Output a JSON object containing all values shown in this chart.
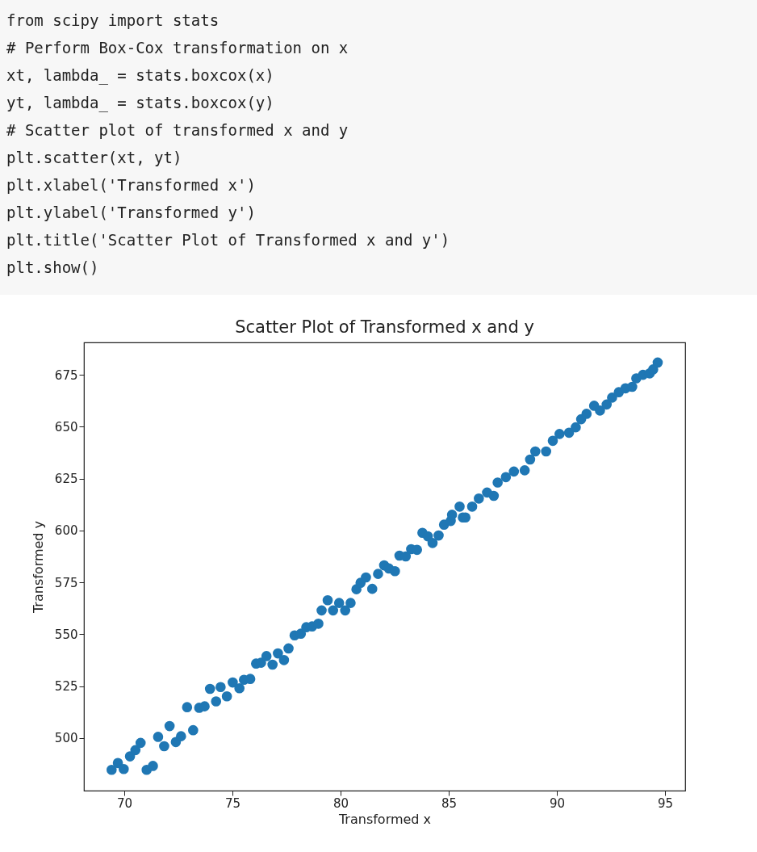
{
  "chart_data": {
    "type": "scatter",
    "title": "Scatter Plot of Transformed x and y",
    "xlabel": "Transformed x",
    "ylabel": "Transformed y",
    "annotations": [
      "from scipy import stats",
      "# Perform Box-Cox transformation on x",
      "xt, lambda_ = stats.boxcox(x)",
      "yt, lambda_ = stats.boxcox(y)",
      "# Scatter plot of transformed x and y",
      "plt.scatter(xt, yt)",
      "plt.xlabel('Transformed x')",
      "plt.ylabel('Transformed y')",
      "plt.title('Scatter Plot of Transformed x and y')",
      "plt.show()"
    ],
    "series": [
      {
        "color": "#1f77b4",
        "x": [
          69.41,
          69.7,
          69.97,
          70.26,
          70.51,
          70.75,
          71.03,
          71.32,
          71.56,
          71.84,
          72.09,
          72.38,
          72.62,
          72.9,
          73.18,
          73.46,
          73.71,
          73.96,
          74.24,
          74.45,
          74.74,
          75.01,
          75.32,
          75.53,
          75.82,
          76.09,
          76.32,
          76.57,
          76.85,
          77.1,
          77.38,
          77.59,
          77.87,
          78.16,
          78.41,
          78.68,
          78.97,
          79.12,
          79.4,
          79.65,
          79.93,
          80.21,
          80.46,
          80.73,
          80.92,
          81.17,
          81.46,
          81.73,
          82.01,
          82.23,
          82.51,
          82.72,
          83.01,
          83.26,
          83.53,
          83.78,
          84.03,
          84.25,
          84.53,
          84.78,
          85.09,
          85.15,
          85.5,
          85.65,
          85.77,
          86.08,
          86.39,
          86.77,
          87.08,
          87.26,
          87.64,
          88.01,
          88.51,
          88.76,
          89.0,
          89.5,
          89.81,
          90.12,
          90.56,
          90.87,
          91.12,
          91.37,
          91.72,
          91.99,
          92.3,
          92.55,
          92.86,
          93.17,
          93.48,
          93.67,
          93.98,
          94.29,
          94.45,
          94.66
        ],
        "values": [
          484.7,
          488.0,
          485.1,
          491.2,
          494.2,
          497.7,
          484.7,
          486.6,
          500.6,
          496.1,
          505.8,
          498.1,
          500.9,
          514.9,
          503.8,
          514.6,
          515.3,
          523.7,
          517.7,
          524.6,
          520.1,
          526.8,
          524.0,
          528.1,
          528.5,
          535.9,
          536.3,
          539.5,
          535.4,
          540.8,
          537.6,
          543.2,
          549.5,
          550.3,
          553.4,
          553.8,
          555.1,
          561.5,
          566.4,
          561.5,
          565.1,
          561.5,
          565.1,
          571.7,
          574.8,
          577.4,
          571.9,
          579.1,
          583.2,
          581.7,
          580.4,
          587.9,
          587.5,
          591.0,
          590.7,
          598.9,
          597.2,
          594.0,
          597.6,
          602.8,
          604.6,
          607.6,
          611.5,
          606.3,
          606.3,
          611.5,
          615.4,
          618.3,
          616.7,
          623.1,
          625.7,
          628.4,
          629.0,
          634.2,
          638.1,
          638.1,
          643.2,
          646.5,
          647.1,
          649.7,
          653.6,
          656.2,
          660.1,
          657.8,
          660.7,
          664.0,
          666.6,
          668.5,
          669.2,
          673.3,
          675.0,
          675.7,
          677.6,
          680.9
        ]
      }
    ],
    "xlim": [
      68.13,
      95.93
    ],
    "ylim": [
      474.7,
      690.6
    ],
    "xticks": [
      70,
      75,
      80,
      85,
      90,
      95
    ],
    "yticks": [
      500,
      525,
      550,
      575,
      600,
      625,
      650,
      675
    ],
    "grid": false,
    "marker": "circle"
  }
}
